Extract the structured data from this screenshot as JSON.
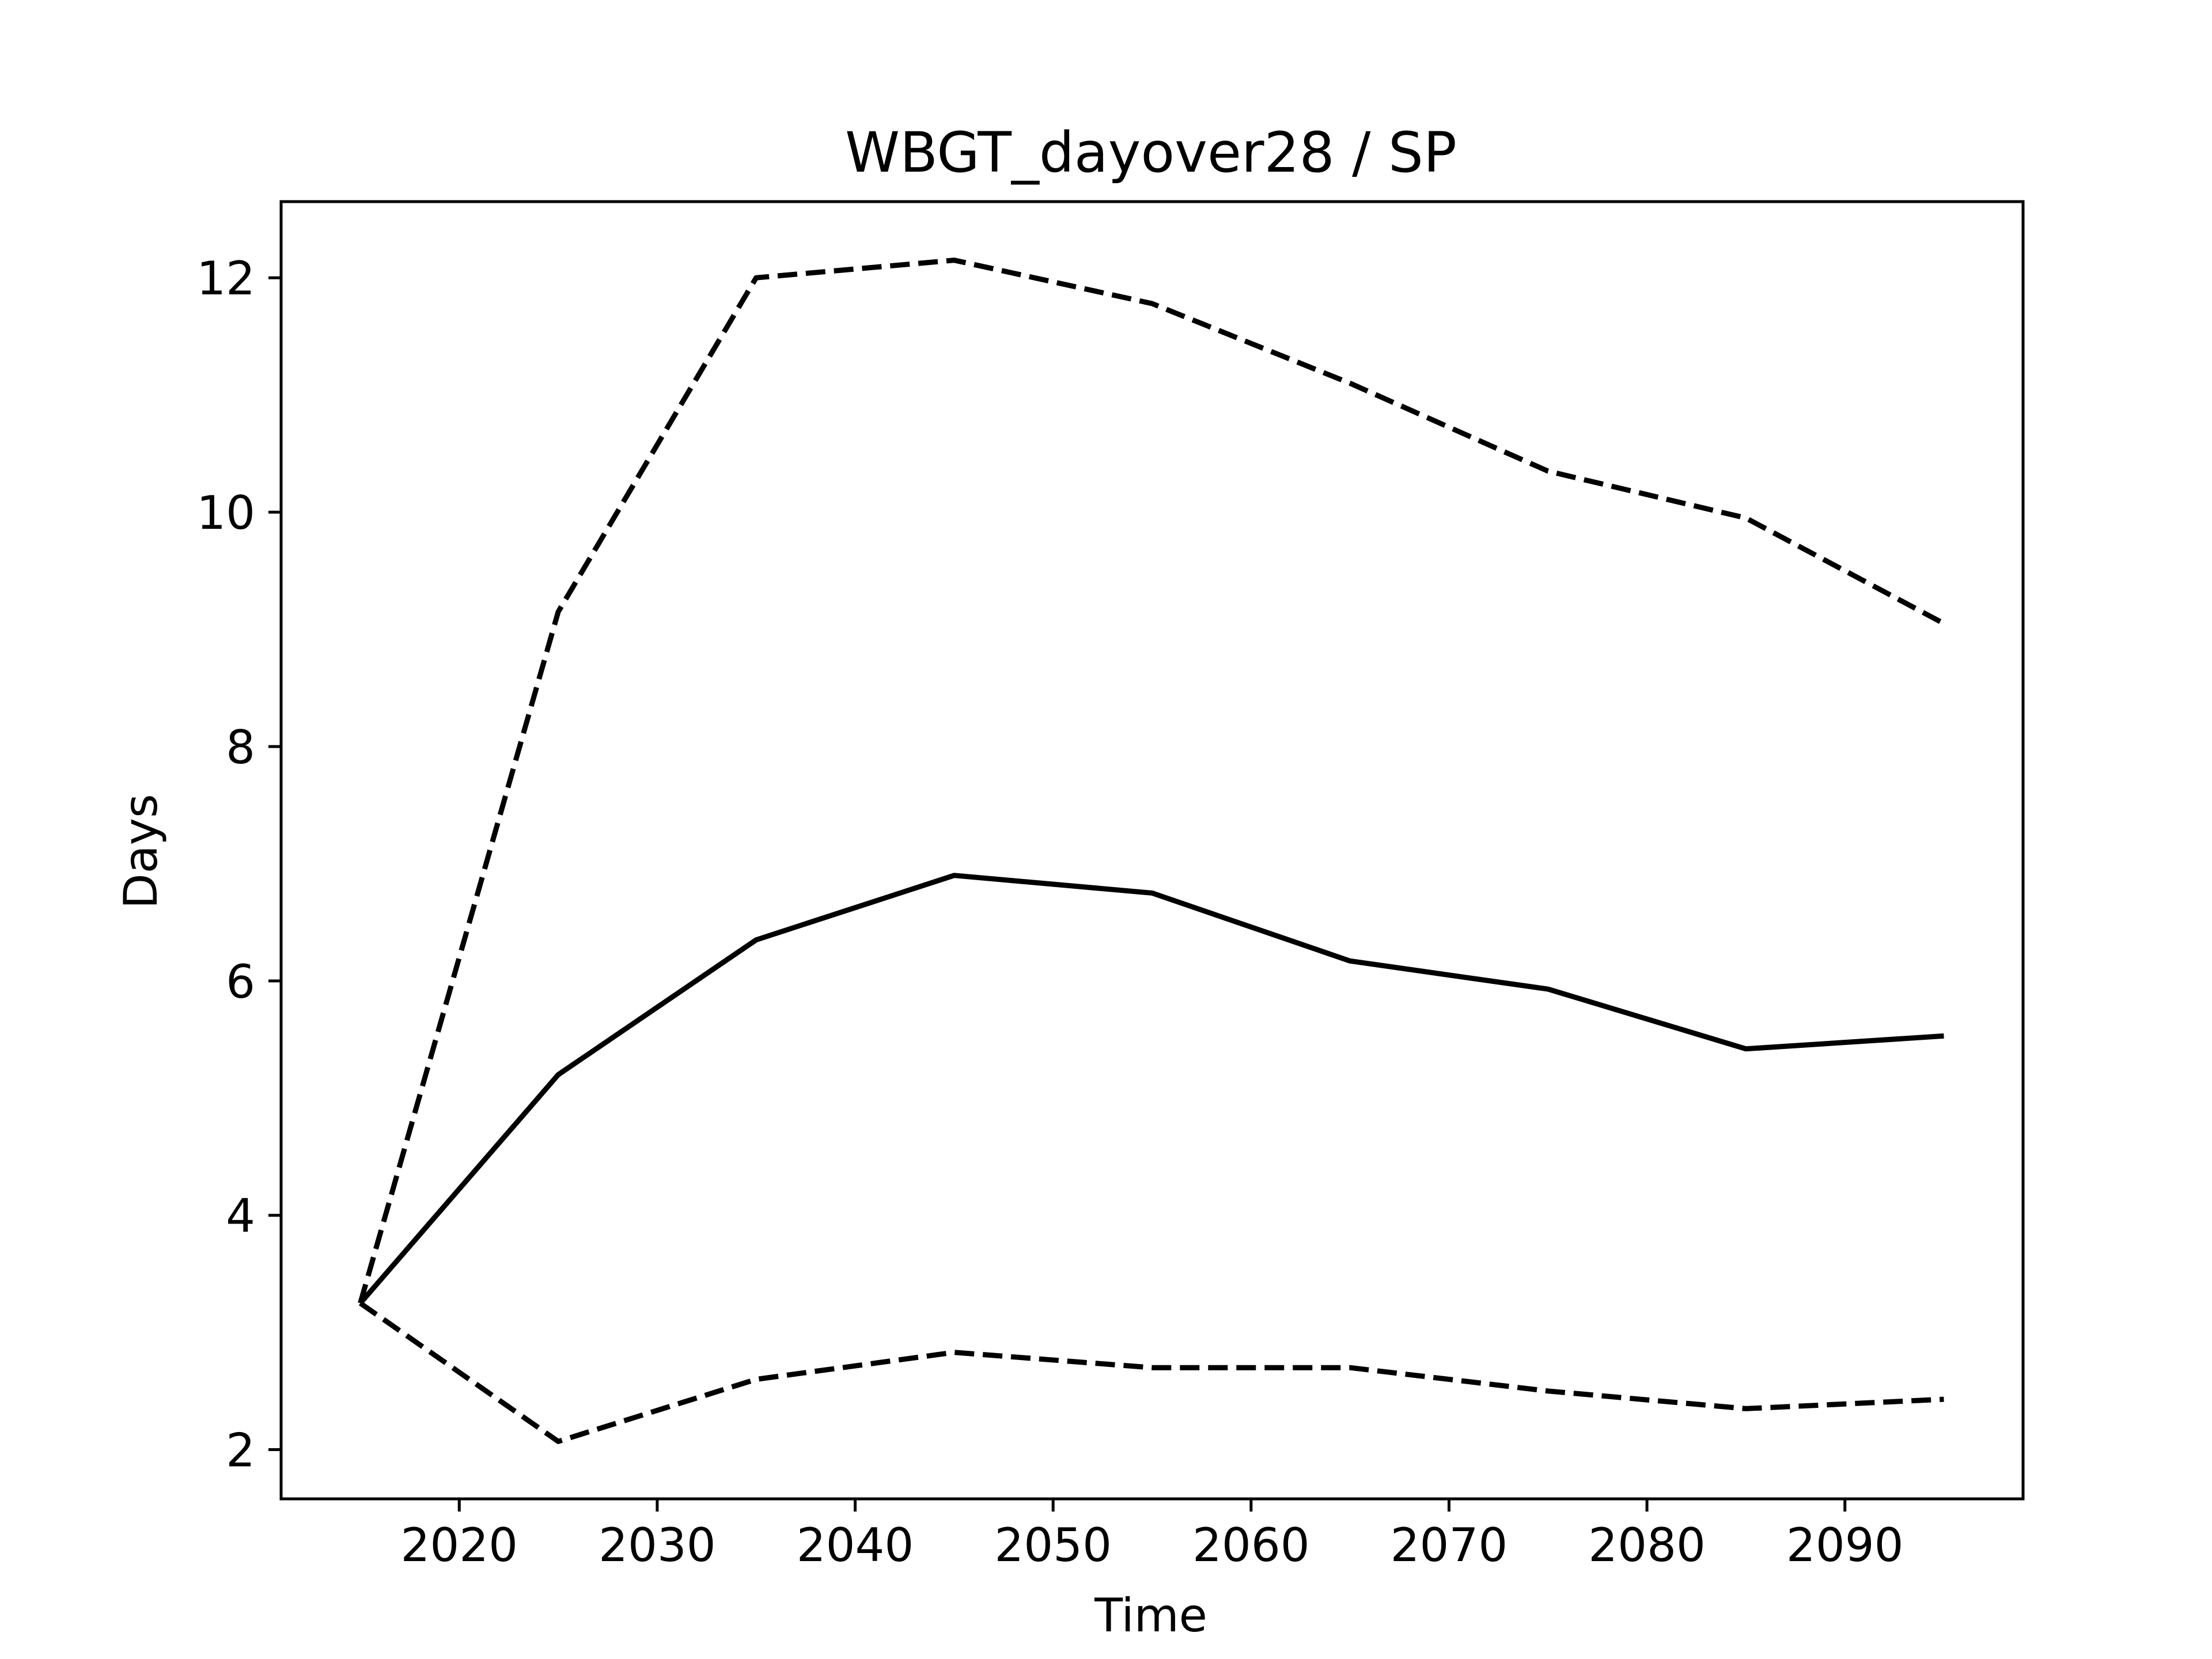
{
  "chart_data": {
    "type": "line",
    "title": "WBGT_dayover28 / SP",
    "xlabel": "Time",
    "ylabel": "Days",
    "xlim": [
      2011,
      2099
    ],
    "ylim": [
      1.58,
      12.65
    ],
    "xticks": [
      2020,
      2030,
      2040,
      2050,
      2060,
      2070,
      2080,
      2090
    ],
    "xtick_labels": [
      "2020",
      "2030",
      "2040",
      "2050",
      "2060",
      "2070",
      "2080",
      "2090"
    ],
    "yticks": [
      2,
      4,
      6,
      8,
      10,
      12
    ],
    "ytick_labels": [
      "2",
      "4",
      "6",
      "8",
      "10",
      "12"
    ],
    "grid": false,
    "legend": false,
    "x": [
      2015,
      2025,
      2035,
      2045,
      2055,
      2065,
      2075,
      2085,
      2095
    ],
    "series": [
      {
        "key": "upper",
        "style": "dashed",
        "color": "#000000",
        "values": [
          3.25,
          9.15,
          12.0,
          12.15,
          11.78,
          11.1,
          10.35,
          9.95,
          9.05
        ]
      },
      {
        "key": "median",
        "style": "solid",
        "color": "#000000",
        "values": [
          3.25,
          5.2,
          6.35,
          6.9,
          6.75,
          6.17,
          5.93,
          5.42,
          5.53
        ]
      },
      {
        "key": "lower",
        "style": "dashed",
        "color": "#000000",
        "values": [
          3.25,
          2.07,
          2.6,
          2.83,
          2.7,
          2.7,
          2.5,
          2.35,
          2.43
        ]
      }
    ]
  }
}
